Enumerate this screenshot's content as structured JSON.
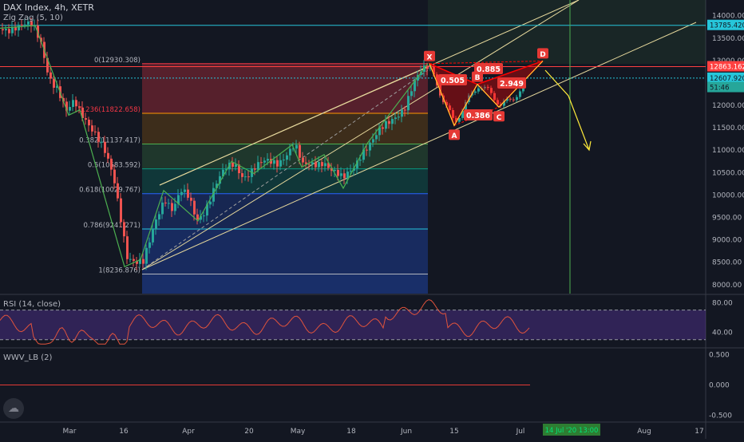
{
  "header": {
    "title": "DAX Index, 4h, XETR",
    "indicator": "Zig Zag (5, 10)",
    "rsi_label": "RSI (14, close)",
    "wwv_label": "WWV_LB (2)"
  },
  "colors": {
    "background": "#131722",
    "up": "#26a69a",
    "down": "#ef5350",
    "zigzag": "#4caf50",
    "pattern": "#ff0000",
    "channel": "#e6d89c",
    "arrow": "#ffeb3b",
    "rsi": "#e0533c",
    "rsi_band": "#4a2e7a",
    "hline_red": "#ff4040",
    "hline_teal": "#26c6da",
    "vline": "#4caf50"
  },
  "chart_data": [
    {
      "type": "line",
      "name": "price",
      "title": "DAX Index, 4h, XETR",
      "x_ticks": [
        "Mar",
        "16",
        "Apr",
        "20",
        "May",
        "18",
        "Jun",
        "15",
        "Jul",
        "Aug",
        "17"
      ],
      "ylim": [
        7800,
        14350
      ],
      "y_ticks": [
        14000,
        13500,
        13000,
        12500,
        12000,
        11500,
        11000,
        10500,
        10000,
        9500,
        9000,
        8500,
        8000
      ],
      "price_labels": [
        {
          "value": 13785.42,
          "text": "13785.420",
          "color": "#26c6da"
        },
        {
          "value": 12863.162,
          "text": "12863.162",
          "color": "#ff4040"
        },
        {
          "value": 12607.92,
          "text": "12607.920",
          "color": "#26c6da"
        },
        {
          "value": 12400,
          "text": "51:46",
          "color": "#26a69a"
        }
      ],
      "fib_levels": [
        {
          "ratio": "0",
          "value": 12930.308,
          "label": "0(12930.308)"
        },
        {
          "ratio": "0.236",
          "value": 11822.658,
          "label": "0.236(11822.658)"
        },
        {
          "ratio": "0.382",
          "value": 11137.417,
          "label": "0.382(11137.417)"
        },
        {
          "ratio": "0.5",
          "value": 10583.592,
          "label": "0.5(10583.592)"
        },
        {
          "ratio": "0.618",
          "value": 10029.767,
          "label": "0.618(10029.767)"
        },
        {
          "ratio": "0.786",
          "value": 9241.271,
          "label": "0.786(9241.271)"
        },
        {
          "ratio": "1",
          "value": 8236.876,
          "label": "1(8236.876)"
        }
      ],
      "harmonic_points": [
        {
          "label": "X",
          "value": 12930
        },
        {
          "label": "A",
          "value": 11550
        },
        {
          "label": "B",
          "value": 12470
        },
        {
          "label": "C",
          "value": 11960
        },
        {
          "label": "D",
          "value": 12990
        }
      ],
      "harmonic_ratios": [
        "0.505",
        "0.885",
        "0.386",
        "2.949"
      ],
      "time_label": "14 Jul '20  13:00"
    },
    {
      "type": "line",
      "name": "RSI",
      "title": "RSI (14, close)",
      "ylim": [
        20,
        90
      ],
      "y_ticks": [
        80,
        40
      ],
      "bands": [
        70,
        30
      ]
    },
    {
      "type": "line",
      "name": "WWV_LB",
      "title": "WWV_LB (2)",
      "y_ticks": [
        0.5,
        0.0,
        -0.5
      ],
      "y_tick_labels": [
        "0.500",
        "0.000",
        "-0.500"
      ],
      "ylim": [
        -0.6,
        0.6
      ],
      "values_baseline": 0.0
    }
  ]
}
